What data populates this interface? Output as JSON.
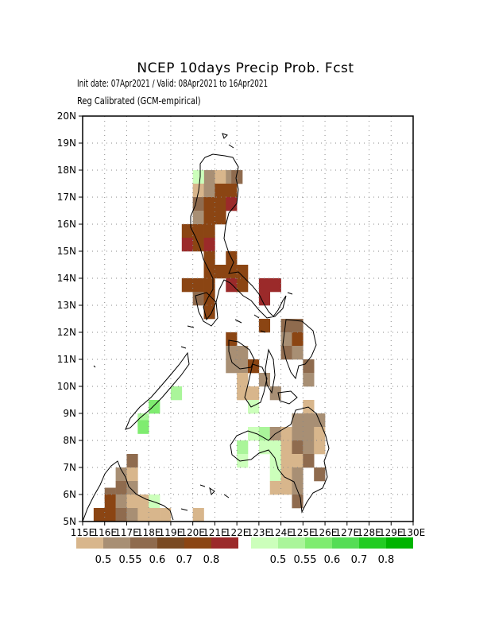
{
  "title": "NCEP 10days Precip Prob. Fcst",
  "subtitle_line1": "Init date: 07Apr2021 / Valid: 08Apr2021 to 16Apr2021",
  "subtitle_line2": "Reg Calibrated (GCM-empirical)",
  "map": {
    "lon_range": [
      115,
      130
    ],
    "lat_range": [
      5,
      20
    ],
    "x_ticks": [
      "115E",
      "116E",
      "117E",
      "118E",
      "119E",
      "120E",
      "121E",
      "122E",
      "123E",
      "124E",
      "125E",
      "126E",
      "127E",
      "128E",
      "129E",
      "130E"
    ],
    "y_ticks": [
      "5N",
      "6N",
      "7N",
      "8N",
      "9N",
      "10N",
      "11N",
      "12N",
      "13N",
      "14N",
      "15N",
      "16N",
      "17N",
      "18N",
      "19N",
      "20N"
    ],
    "grid": "dotted"
  },
  "legend": {
    "dry": {
      "colors": [
        "#d8b68c",
        "#a88f74",
        "#8f6b4e",
        "#7a4a22",
        "#8b4513",
        "#9b2a2a"
      ],
      "labels": [
        "0.5",
        "0.55",
        "0.6",
        "0.7",
        "0.8"
      ]
    },
    "wet": {
      "colors": [
        "#ccffbb",
        "#aaf59a",
        "#7fec70",
        "#55dd55",
        "#22cc22",
        "#00b400"
      ],
      "labels": [
        "0.5",
        "0.55",
        "0.6",
        "0.7",
        "0.8"
      ]
    }
  },
  "cells": [
    {
      "lon": 120.75,
      "lat": 17.75,
      "c": "#a88f74"
    },
    {
      "lon": 121.25,
      "lat": 17.75,
      "c": "#d8b68c"
    },
    {
      "lon": 121.75,
      "lat": 17.75,
      "c": "#a88f74"
    },
    {
      "lon": 122.0,
      "lat": 17.75,
      "c": "#8f6b4e"
    },
    {
      "lon": 120.25,
      "lat": 17.75,
      "c": "#ccffbb"
    },
    {
      "lon": 120.25,
      "lat": 17.25,
      "c": "#d8b68c"
    },
    {
      "lon": 120.75,
      "lat": 17.25,
      "c": "#a88f74"
    },
    {
      "lon": 121.25,
      "lat": 17.25,
      "c": "#8b4513"
    },
    {
      "lon": 121.75,
      "lat": 17.25,
      "c": "#8b4513"
    },
    {
      "lon": 120.25,
      "lat": 16.75,
      "c": "#8f6b4e"
    },
    {
      "lon": 120.75,
      "lat": 16.75,
      "c": "#8b4513"
    },
    {
      "lon": 121.25,
      "lat": 16.75,
      "c": "#8b4513"
    },
    {
      "lon": 121.75,
      "lat": 16.75,
      "c": "#9b2a2a"
    },
    {
      "lon": 120.25,
      "lat": 16.25,
      "c": "#a88f74"
    },
    {
      "lon": 120.75,
      "lat": 16.25,
      "c": "#8b4513"
    },
    {
      "lon": 121.25,
      "lat": 16.25,
      "c": "#8b4513"
    },
    {
      "lon": 119.75,
      "lat": 15.75,
      "c": "#8b4513"
    },
    {
      "lon": 120.25,
      "lat": 15.75,
      "c": "#8b4513"
    },
    {
      "lon": 120.75,
      "lat": 15.75,
      "c": "#8b4513"
    },
    {
      "lon": 119.75,
      "lat": 15.25,
      "c": "#9b2a2a"
    },
    {
      "lon": 120.25,
      "lat": 15.25,
      "c": "#8b4513"
    },
    {
      "lon": 120.75,
      "lat": 15.25,
      "c": "#9b2a2a"
    },
    {
      "lon": 120.75,
      "lat": 14.75,
      "c": "#8b4513"
    },
    {
      "lon": 121.75,
      "lat": 14.75,
      "c": "#8b4513"
    },
    {
      "lon": 120.75,
      "lat": 14.25,
      "c": "#8b4513"
    },
    {
      "lon": 121.25,
      "lat": 14.25,
      "c": "#8b4513"
    },
    {
      "lon": 121.75,
      "lat": 14.25,
      "c": "#8b4513"
    },
    {
      "lon": 122.25,
      "lat": 14.25,
      "c": "#8b4513"
    },
    {
      "lon": 119.75,
      "lat": 13.75,
      "c": "#8b4513"
    },
    {
      "lon": 120.25,
      "lat": 13.75,
      "c": "#8b4513"
    },
    {
      "lon": 120.75,
      "lat": 13.75,
      "c": "#8b4513"
    },
    {
      "lon": 121.75,
      "lat": 13.75,
      "c": "#9b2a2a"
    },
    {
      "lon": 122.25,
      "lat": 13.75,
      "c": "#8b4513"
    },
    {
      "lon": 123.25,
      "lat": 13.75,
      "c": "#9b2a2a"
    },
    {
      "lon": 123.75,
      "lat": 13.75,
      "c": "#9b2a2a"
    },
    {
      "lon": 120.25,
      "lat": 13.25,
      "c": "#8f6b4e"
    },
    {
      "lon": 120.75,
      "lat": 13.25,
      "c": "#8b4513"
    },
    {
      "lon": 123.25,
      "lat": 13.25,
      "c": "#9b2a2a"
    },
    {
      "lon": 120.75,
      "lat": 12.75,
      "c": "#8b4513"
    },
    {
      "lon": 123.25,
      "lat": 12.25,
      "c": "#8b4513"
    },
    {
      "lon": 124.25,
      "lat": 12.25,
      "c": "#8f6b4e"
    },
    {
      "lon": 124.75,
      "lat": 12.25,
      "c": "#8f6b4e"
    },
    {
      "lon": 121.75,
      "lat": 11.75,
      "c": "#8b4513"
    },
    {
      "lon": 124.25,
      "lat": 11.75,
      "c": "#a88f74"
    },
    {
      "lon": 124.75,
      "lat": 11.75,
      "c": "#8b4513"
    },
    {
      "lon": 121.75,
      "lat": 11.25,
      "c": "#a88f74"
    },
    {
      "lon": 122.25,
      "lat": 11.25,
      "c": "#a88f74"
    },
    {
      "lon": 124.25,
      "lat": 11.25,
      "c": "#8f6b4e"
    },
    {
      "lon": 124.75,
      "lat": 11.25,
      "c": "#a88f74"
    },
    {
      "lon": 121.75,
      "lat": 10.75,
      "c": "#a88f74"
    },
    {
      "lon": 122.25,
      "lat": 10.75,
      "c": "#a88f74"
    },
    {
      "lon": 122.75,
      "lat": 10.75,
      "c": "#8b4513"
    },
    {
      "lon": 125.25,
      "lat": 10.75,
      "c": "#8f6b4e"
    },
    {
      "lon": 123.25,
      "lat": 10.25,
      "c": "#a88f74"
    },
    {
      "lon": 122.25,
      "lat": 10.25,
      "c": "#d8b68c"
    },
    {
      "lon": 125.25,
      "lat": 10.25,
      "c": "#a88f74"
    },
    {
      "lon": 122.25,
      "lat": 9.75,
      "c": "#d8b68c"
    },
    {
      "lon": 122.75,
      "lat": 9.75,
      "c": "#d8b68c"
    },
    {
      "lon": 123.75,
      "lat": 9.75,
      "c": "#a88f74"
    },
    {
      "lon": 122.75,
      "lat": 9.25,
      "c": "#ccffbb"
    },
    {
      "lon": 125.25,
      "lat": 9.25,
      "c": "#d8b68c"
    },
    {
      "lon": 124.75,
      "lat": 8.75,
      "c": "#a88f74"
    },
    {
      "lon": 125.25,
      "lat": 8.75,
      "c": "#a88f74"
    },
    {
      "lon": 125.75,
      "lat": 8.75,
      "c": "#a88f74"
    },
    {
      "lon": 122.75,
      "lat": 8.25,
      "c": "#ccffbb"
    },
    {
      "lon": 123.25,
      "lat": 8.25,
      "c": "#aaf59a"
    },
    {
      "lon": 123.75,
      "lat": 8.25,
      "c": "#a88f74"
    },
    {
      "lon": 124.25,
      "lat": 8.25,
      "c": "#d8b68c"
    },
    {
      "lon": 124.75,
      "lat": 8.25,
      "c": "#a88f74"
    },
    {
      "lon": 125.25,
      "lat": 8.25,
      "c": "#a88f74"
    },
    {
      "lon": 125.75,
      "lat": 8.25,
      "c": "#d8b68c"
    },
    {
      "lon": 122.25,
      "lat": 7.75,
      "c": "#aaf59a"
    },
    {
      "lon": 123.25,
      "lat": 7.75,
      "c": "#ccffbb"
    },
    {
      "lon": 123.75,
      "lat": 7.75,
      "c": "#ccffbb"
    },
    {
      "lon": 124.25,
      "lat": 7.75,
      "c": "#d8b68c"
    },
    {
      "lon": 124.75,
      "lat": 7.75,
      "c": "#8f6b4e"
    },
    {
      "lon": 125.25,
      "lat": 7.75,
      "c": "#a88f74"
    },
    {
      "lon": 125.75,
      "lat": 7.75,
      "c": "#d8b68c"
    },
    {
      "lon": 122.25,
      "lat": 7.25,
      "c": "#ccffbb"
    },
    {
      "lon": 123.75,
      "lat": 7.25,
      "c": "#ccffbb"
    },
    {
      "lon": 124.25,
      "lat": 7.25,
      "c": "#d8b68c"
    },
    {
      "lon": 124.75,
      "lat": 7.25,
      "c": "#d8b68c"
    },
    {
      "lon": 125.25,
      "lat": 7.25,
      "c": "#8f6b4e"
    },
    {
      "lon": 123.75,
      "lat": 6.75,
      "c": "#ccffbb"
    },
    {
      "lon": 124.25,
      "lat": 6.75,
      "c": "#d8b68c"
    },
    {
      "lon": 124.75,
      "lat": 6.75,
      "c": "#a88f74"
    },
    {
      "lon": 125.75,
      "lat": 6.75,
      "c": "#8f6b4e"
    },
    {
      "lon": 123.75,
      "lat": 6.25,
      "c": "#d8b68c"
    },
    {
      "lon": 124.25,
      "lat": 6.25,
      "c": "#d8b68c"
    },
    {
      "lon": 124.75,
      "lat": 6.25,
      "c": "#a88f74"
    },
    {
      "lon": 124.75,
      "lat": 5.75,
      "c": "#8f6b4e"
    },
    {
      "lon": 120.25,
      "lat": 5.25,
      "c": "#d8b68c"
    },
    {
      "lon": 119.25,
      "lat": 9.75,
      "c": "#aaf59a"
    },
    {
      "lon": 118.25,
      "lat": 9.25,
      "c": "#7fec70"
    },
    {
      "lon": 117.75,
      "lat": 8.75,
      "c": "#aaf59a"
    },
    {
      "lon": 117.75,
      "lat": 8.5,
      "c": "#7fec70"
    },
    {
      "lon": 117.25,
      "lat": 7.25,
      "c": "#8f6b4e"
    },
    {
      "lon": 116.75,
      "lat": 6.75,
      "c": "#a88f74"
    },
    {
      "lon": 117.25,
      "lat": 6.75,
      "c": "#d8b68c"
    },
    {
      "lon": 116.75,
      "lat": 6.25,
      "c": "#8f6b4e"
    },
    {
      "lon": 117.25,
      "lat": 6.25,
      "c": "#a88f74"
    },
    {
      "lon": 116.25,
      "lat": 6.0,
      "c": "#8f6b4e"
    },
    {
      "lon": 116.25,
      "lat": 5.75,
      "c": "#8b4513"
    },
    {
      "lon": 116.75,
      "lat": 5.75,
      "c": "#a88f74"
    },
    {
      "lon": 117.25,
      "lat": 5.75,
      "c": "#d8b68c"
    },
    {
      "lon": 117.75,
      "lat": 5.75,
      "c": "#d8b68c"
    },
    {
      "lon": 118.25,
      "lat": 5.75,
      "c": "#ccffbb"
    },
    {
      "lon": 115.75,
      "lat": 5.25,
      "c": "#8b4513"
    },
    {
      "lon": 116.25,
      "lat": 5.25,
      "c": "#8b4513"
    },
    {
      "lon": 116.75,
      "lat": 5.25,
      "c": "#8f6b4e"
    },
    {
      "lon": 117.25,
      "lat": 5.25,
      "c": "#a88f74"
    },
    {
      "lon": 117.75,
      "lat": 5.25,
      "c": "#d8b68c"
    },
    {
      "lon": 118.25,
      "lat": 5.25,
      "c": "#d8b68c"
    },
    {
      "lon": 118.75,
      "lat": 5.25,
      "c": "#d8b68c"
    }
  ]
}
